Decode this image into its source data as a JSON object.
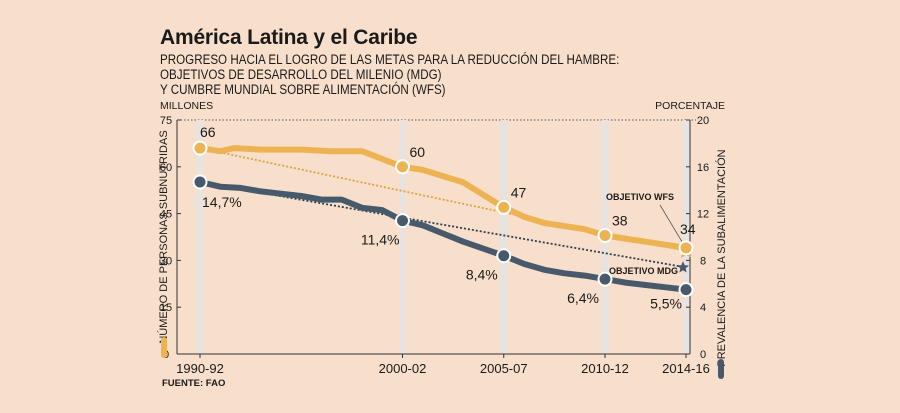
{
  "header": {
    "title": "América Latina y el Caribe",
    "subtitle_lines": [
      "PROGRESO HACIA EL LOGRO DE LAS METAS PARA LA REDUCCIÓN DEL HAMBRE:",
      "OBJETIVOS DE DESARROLLO DEL MILENIO (MDG)",
      "Y CUMBRE MUNDIAL SOBRE ALIMENTACIÓN (WFS)"
    ]
  },
  "source": "FUENTE: FAO",
  "chart_data": {
    "type": "line",
    "left_axis": {
      "unit_label": "MILLONES",
      "title": "NÚMERO DE PERSONAS SUBNUTRIDAS",
      "range": [
        0,
        75
      ],
      "ticks": [
        0,
        15,
        30,
        45,
        60,
        75
      ]
    },
    "right_axis": {
      "unit_label": "PORCENTAJE",
      "title": "PREVALENCIA DE LA SUBALIMENTACIÓN",
      "range": [
        0,
        20
      ],
      "ticks": [
        0,
        4,
        8,
        12,
        16,
        20
      ]
    },
    "x_range": [
      1991,
      2015
    ],
    "periods": [
      {
        "label": "1990-92",
        "x": 1991
      },
      {
        "label": "2000-02",
        "x": 2001
      },
      {
        "label": "2005-07",
        "x": 2006
      },
      {
        "label": "2010-12",
        "x": 2011
      },
      {
        "label": "2014-16",
        "x": 2015
      }
    ],
    "series": [
      {
        "name": "Número de personas subnutridas (millones)",
        "axis": "left",
        "color": "#edb352",
        "line": [
          [
            1991,
            66
          ],
          [
            1992,
            65
          ],
          [
            1992.7,
            66
          ],
          [
            1994,
            65.5
          ],
          [
            1996,
            65.5
          ],
          [
            1997.5,
            65
          ],
          [
            1999,
            65
          ],
          [
            2000,
            62.5
          ],
          [
            2001,
            60
          ],
          [
            2002,
            59
          ],
          [
            2004,
            55
          ],
          [
            2005,
            51
          ],
          [
            2006,
            47
          ],
          [
            2007,
            44
          ],
          [
            2008,
            42
          ],
          [
            2010,
            40
          ],
          [
            2011,
            38
          ],
          [
            2012,
            37
          ],
          [
            2013,
            36
          ],
          [
            2014,
            35
          ],
          [
            2015,
            34
          ]
        ],
        "labeled_points": [
          {
            "x": 1991,
            "value": 66,
            "label": "66"
          },
          {
            "x": 2001,
            "value": 60,
            "label": "60"
          },
          {
            "x": 2006,
            "value": 47,
            "label": "47"
          },
          {
            "x": 2011,
            "value": 38,
            "label": "38"
          },
          {
            "x": 2015,
            "value": 34,
            "label": "34"
          }
        ],
        "target": {
          "name": "Objetivo WFS",
          "label": "OBJETIVO WFS",
          "from": [
            1991,
            66
          ],
          "to": [
            2015,
            33
          ]
        }
      },
      {
        "name": "Prevalencia de la subalimentación (%)",
        "axis": "right",
        "color": "#475a6b",
        "line": [
          [
            1991,
            14.7
          ],
          [
            1992,
            14.3
          ],
          [
            1993,
            14.2
          ],
          [
            1994,
            13.9
          ],
          [
            1995,
            13.7
          ],
          [
            1996,
            13.5
          ],
          [
            1997,
            13.2
          ],
          [
            1998,
            13.2
          ],
          [
            1999,
            12.5
          ],
          [
            2000,
            12.3
          ],
          [
            2001,
            11.4
          ],
          [
            2002,
            11.0
          ],
          [
            2003,
            10.3
          ],
          [
            2004,
            9.6
          ],
          [
            2005,
            9.0
          ],
          [
            2006,
            8.4
          ],
          [
            2007,
            7.7
          ],
          [
            2008,
            7.2
          ],
          [
            2009,
            6.9
          ],
          [
            2010,
            6.7
          ],
          [
            2011,
            6.4
          ],
          [
            2012,
            6.1
          ],
          [
            2013,
            5.9
          ],
          [
            2014,
            5.7
          ],
          [
            2015,
            5.5
          ]
        ],
        "labeled_points": [
          {
            "x": 1991,
            "value": 14.7,
            "label": "14,7%"
          },
          {
            "x": 2001,
            "value": 11.4,
            "label": "11,4%"
          },
          {
            "x": 2006,
            "value": 8.4,
            "label": "8,4%"
          },
          {
            "x": 2011,
            "value": 6.4,
            "label": "6,4%"
          },
          {
            "x": 2015,
            "value": 5.5,
            "label": "5,5%"
          }
        ],
        "target": {
          "name": "Objetivo MDG",
          "label": "OBJETIVO MDG",
          "from": [
            1991,
            14.7
          ],
          "to": [
            2015,
            7.4
          ]
        }
      }
    ]
  }
}
